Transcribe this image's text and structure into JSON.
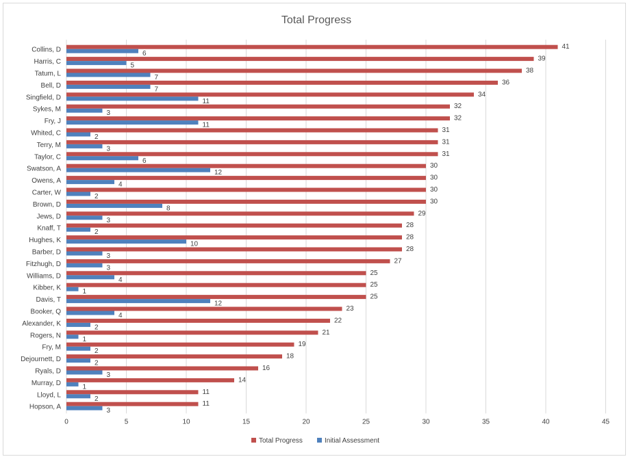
{
  "chart_data": {
    "type": "bar",
    "orientation": "horizontal",
    "title": "Total Progress",
    "xlabel": "",
    "ylabel": "",
    "xlim": [
      0,
      45
    ],
    "x_ticks": [
      "0",
      "5",
      "10",
      "15",
      "20",
      "25",
      "30",
      "35",
      "40",
      "45"
    ],
    "grid": true,
    "legend_position": "bottom",
    "categories": [
      "Collins, D",
      "Harris, C",
      "Tatum, L",
      "Bell, D",
      "Singfield, D",
      "Sykes, M",
      "Fry, J",
      "Whited, C",
      "Terry, M",
      "Taylor, C",
      "Swatson, A",
      "Owens, A",
      "Carter, W",
      "Brown, D",
      "Jews, D",
      "Knaff, T",
      "Hughes, K",
      "Barber, D",
      "Fitzhugh, D",
      "Williams, D",
      "Kibber, K",
      "Davis, T",
      "Booker, Q",
      "Alexander, K",
      "Rogers, N",
      "Fry, M",
      "Dejournett, D",
      "Ryals, D",
      "Murray, D",
      "Lloyd, L",
      "Hopson, A"
    ],
    "series": [
      {
        "name": "Total Progress",
        "color": "#c0504d",
        "values": [
          41,
          39,
          38,
          36,
          34,
          32,
          32,
          31,
          31,
          31,
          30,
          30,
          30,
          30,
          29,
          28,
          28,
          28,
          27,
          25,
          25,
          25,
          23,
          22,
          21,
          19,
          18,
          16,
          14,
          11,
          11
        ]
      },
      {
        "name": "Initial Assessment",
        "color": "#4f81bd",
        "values": [
          6,
          5,
          7,
          7,
          11,
          3,
          11,
          2,
          3,
          6,
          12,
          4,
          2,
          8,
          3,
          2,
          10,
          3,
          3,
          4,
          1,
          12,
          4,
          2,
          1,
          2,
          2,
          3,
          1,
          2,
          3
        ]
      }
    ]
  }
}
